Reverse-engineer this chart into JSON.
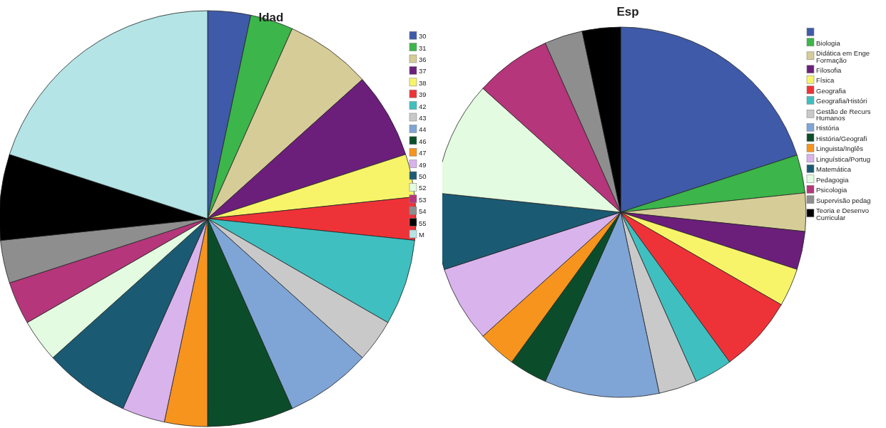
{
  "chart_data": [
    {
      "type": "pie",
      "title": "Idad",
      "legend": "right",
      "categories": [
        "30",
        "31",
        "36",
        "37",
        "38",
        "39",
        "42",
        "43",
        "44",
        "46",
        "47",
        "49",
        "50",
        "52",
        "53",
        "54",
        "55",
        "M"
      ],
      "values": [
        3.33,
        3.33,
        6.67,
        6.67,
        3.33,
        3.33,
        6.67,
        3.33,
        6.67,
        6.67,
        3.33,
        3.33,
        6.67,
        3.33,
        3.33,
        3.33,
        6.67,
        20
      ],
      "colors": [
        "#3f5aa8",
        "#3cb54a",
        "#d6cc97",
        "#6b1f7b",
        "#f7f46a",
        "#ee3338",
        "#40bfc0",
        "#c9c9c9",
        "#7fa5d6",
        "#0b4d2a",
        "#f7941e",
        "#d9b3ec",
        "#1b5a73",
        "#e3fbe0",
        "#b5367b",
        "#8e8e8e",
        "#000000",
        "#b4e4e6"
      ]
    },
    {
      "type": "pie",
      "title": "Esp",
      "legend": "right",
      "categories": [
        null,
        "Biologia",
        "Didática em Enge Formação",
        "Filosofia",
        "Física",
        "Geografia",
        "Geografia/Históri",
        "Gestão de Recurs Humanos",
        "História",
        "História/Geografi",
        "Linguista/Inglês",
        "Linguística/Portug",
        "Matemática",
        "Pedagogia",
        "Psicologia",
        "Supervisão pedag",
        "Teoria e Desenvo Curricular"
      ],
      "values": [
        20,
        3.33,
        3.33,
        3.33,
        3.33,
        6.67,
        3.33,
        3.33,
        10,
        3.33,
        3.33,
        6.67,
        6.67,
        10,
        6.67,
        3.33,
        3.33
      ],
      "colors": [
        "#3f5aa8",
        "#3cb54a",
        "#d6cc97",
        "#6b1f7b",
        "#f7f46a",
        "#ee3338",
        "#40bfc0",
        "#c9c9c9",
        "#7fa5d6",
        "#0b4d2a",
        "#f7941e",
        "#d9b3ec",
        "#1b5a73",
        "#e3fbe0",
        "#b5367b",
        "#8e8e8e",
        "#000000"
      ]
    }
  ]
}
